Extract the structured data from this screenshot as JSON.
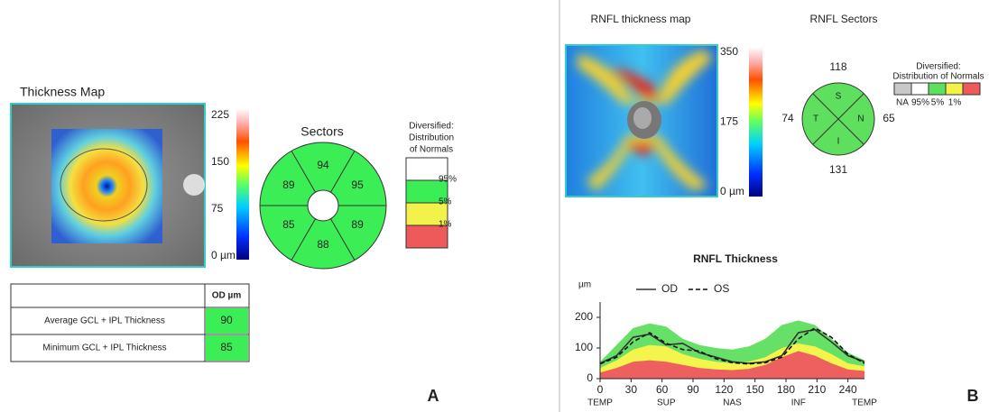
{
  "panel_a": {
    "label": "A",
    "thickness_map": {
      "title": "Thickness Map",
      "scale_lim": [
        0,
        225
      ],
      "scale_ticks": [
        225,
        150,
        75,
        {
          "value": 0,
          "label": "0 µm"
        }
      ]
    },
    "sectors": {
      "title": "Sectors",
      "values": [
        94,
        95,
        89,
        88,
        85,
        89
      ],
      "color": "#3bee55"
    },
    "legend": {
      "title": [
        "Diversified:",
        "Distribution",
        "of Normals"
      ],
      "colors": [
        "#ffffff",
        "#3bee55",
        "#f2f24a",
        "#ee5a5a"
      ],
      "labels": [
        "95%",
        "5%",
        "1%"
      ]
    },
    "table": {
      "header": "OD µm",
      "rows": [
        {
          "label": "Average GCL + IPL Thickness",
          "value": 90
        },
        {
          "label": "Minimum GCL + IPL Thickness",
          "value": 85
        }
      ],
      "color": "#3bee55"
    }
  },
  "panel_b": {
    "label": "B",
    "thickness_map": {
      "title": "RNFL thickness map",
      "scale_lim": [
        0,
        350
      ],
      "scale_ticks": [
        350,
        175,
        {
          "value": 0,
          "label": "0 µm"
        }
      ]
    },
    "sectors": {
      "title": "RNFL Sectors",
      "quadrants": [
        "S",
        "N",
        "I",
        "T"
      ],
      "values": [
        118,
        65,
        131,
        74
      ],
      "color": "#5ee05e"
    },
    "legend": {
      "title": [
        "Diversified:",
        "Distribution of Normals"
      ],
      "colors": [
        "#c8c8c8",
        "#ffffff",
        "#5ee05e",
        "#f2f24a",
        "#ee5a5a"
      ],
      "labels": [
        "NA",
        "95%",
        "5%",
        "1%"
      ]
    }
  },
  "chart_data": {
    "type": "line",
    "title": "RNFL Thickness",
    "y_label": "µm",
    "x": [
      0,
      16,
      32,
      48,
      64,
      80,
      96,
      112,
      128,
      144,
      160,
      176,
      192,
      208,
      224,
      240,
      256
    ],
    "series": [
      {
        "name": "OD",
        "color": "#333333",
        "dash": false,
        "values": [
          50,
          75,
          135,
          145,
          110,
          115,
          85,
          70,
          55,
          50,
          55,
          75,
          150,
          160,
          120,
          75,
          55
        ]
      },
      {
        "name": "OS",
        "color": "#111111",
        "dash": true,
        "values": [
          48,
          70,
          120,
          150,
          115,
          95,
          90,
          65,
          52,
          48,
          52,
          70,
          130,
          165,
          135,
          80,
          50
        ]
      }
    ],
    "bands": [
      {
        "color": "#66e066",
        "values": [
          55,
          110,
          165,
          180,
          170,
          130,
          110,
          100,
          95,
          105,
          130,
          175,
          190,
          175,
          130,
          85,
          60
        ]
      },
      {
        "color": "#f4f44c",
        "values": [
          35,
          60,
          95,
          110,
          105,
          80,
          65,
          55,
          50,
          55,
          70,
          100,
          115,
          105,
          80,
          50,
          40
        ]
      },
      {
        "color": "#ee6060",
        "values": [
          20,
          35,
          55,
          60,
          55,
          45,
          35,
          30,
          28,
          32,
          45,
          70,
          90,
          75,
          50,
          30,
          25
        ]
      }
    ],
    "xlim": [
      0,
      256
    ],
    "ylim": [
      0,
      250
    ],
    "xticks": [
      0,
      30,
      60,
      90,
      120,
      150,
      180,
      210,
      240
    ],
    "yticks": [
      0,
      100,
      200
    ],
    "x_regions": [
      {
        "value": 0,
        "label": "TEMP"
      },
      {
        "value": 64,
        "label": "SUP"
      },
      {
        "value": 128,
        "label": "NAS"
      },
      {
        "value": 192,
        "label": "INF"
      },
      {
        "value": 256,
        "label": "TEMP"
      }
    ]
  }
}
